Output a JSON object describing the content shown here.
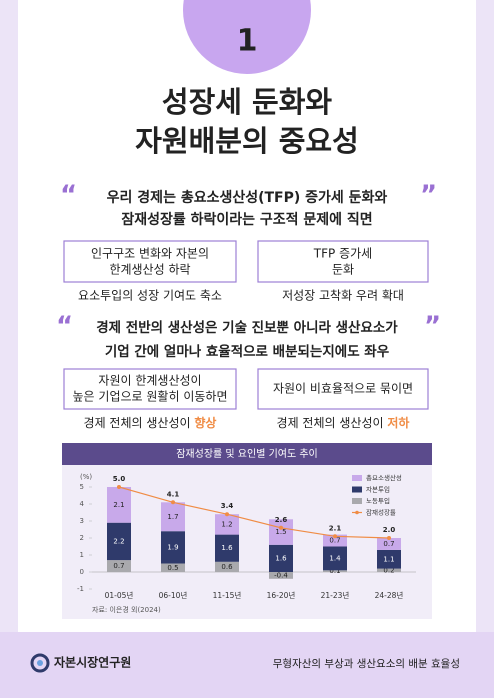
{
  "badge": "1",
  "title": [
    "성장세 둔화와",
    "자원배분의 중요성"
  ],
  "quote_marks": [
    "“",
    "”"
  ],
  "section1": {
    "quote": [
      "우리 경제는 총요소생산성(TFP) 증가세 둔화와",
      "잠재성장률 하락이라는 구조적 문제에 직면"
    ],
    "boxes": [
      {
        "text": [
          "인구구조 변화와 자본의",
          "한계생산성 하락"
        ],
        "caption": "요소투입의 성장 기여도 축소"
      },
      {
        "text": [
          "TFP 증가세",
          "둔화"
        ],
        "caption": "저성장 고착화 우려 확대"
      }
    ]
  },
  "section2": {
    "quote": [
      "경제 전반의 생산성은 기술 진보뿐 아니라 생산요소가",
      "기업 간에 얼마나 효율적으로 배분되는지에도 좌우"
    ],
    "boxes": [
      {
        "text": [
          "자원이 한계생산성이",
          "높은 기업으로 원활히 이동하면"
        ],
        "caption": "경제 전체의 생산성이",
        "highlight": "향상"
      },
      {
        "text": [
          "자원이 비효율적으로 묶이면"
        ],
        "caption": "경제 전체의 생산성이",
        "highlight": "저하"
      }
    ]
  },
  "chart_data": {
    "type": "bar",
    "stacked": true,
    "title": "잠재성장률 및 요인별 기여도 추이",
    "y_unit": "(%)",
    "source": "자료: 이은경 외(2024)",
    "categories": [
      "01-05년",
      "06-10년",
      "11-15년",
      "16-20년",
      "21-23년",
      "24-28년"
    ],
    "series": [
      {
        "name": "총요소생산성",
        "color": "#c8a9ea",
        "values": [
          2.1,
          1.7,
          1.2,
          1.5,
          0.7,
          0.7
        ]
      },
      {
        "name": "자본투입",
        "color": "#2f3a6b",
        "values": [
          2.2,
          1.9,
          1.6,
          1.6,
          1.4,
          1.1
        ]
      },
      {
        "name": "노동투입",
        "color": "#a9a9ad",
        "values": [
          0.7,
          0.5,
          0.6,
          -0.4,
          0.1,
          0.2
        ]
      },
      {
        "name": "잠재성장률",
        "color": "#f08c45",
        "type": "line",
        "values": [
          5.0,
          4.1,
          3.4,
          2.6,
          2.1,
          2.0
        ],
        "value_labels": [
          "5.0",
          "4.1",
          "3.4",
          "2.6",
          "2.1",
          "2.0"
        ]
      }
    ],
    "ylim": [
      -1,
      5
    ],
    "yticks": [
      -1,
      0,
      1,
      2,
      3,
      4,
      5
    ]
  },
  "footer": {
    "logo": "자본시장연구원",
    "text": "무형자산의 부상과 생산요소의 배분 효율성"
  }
}
